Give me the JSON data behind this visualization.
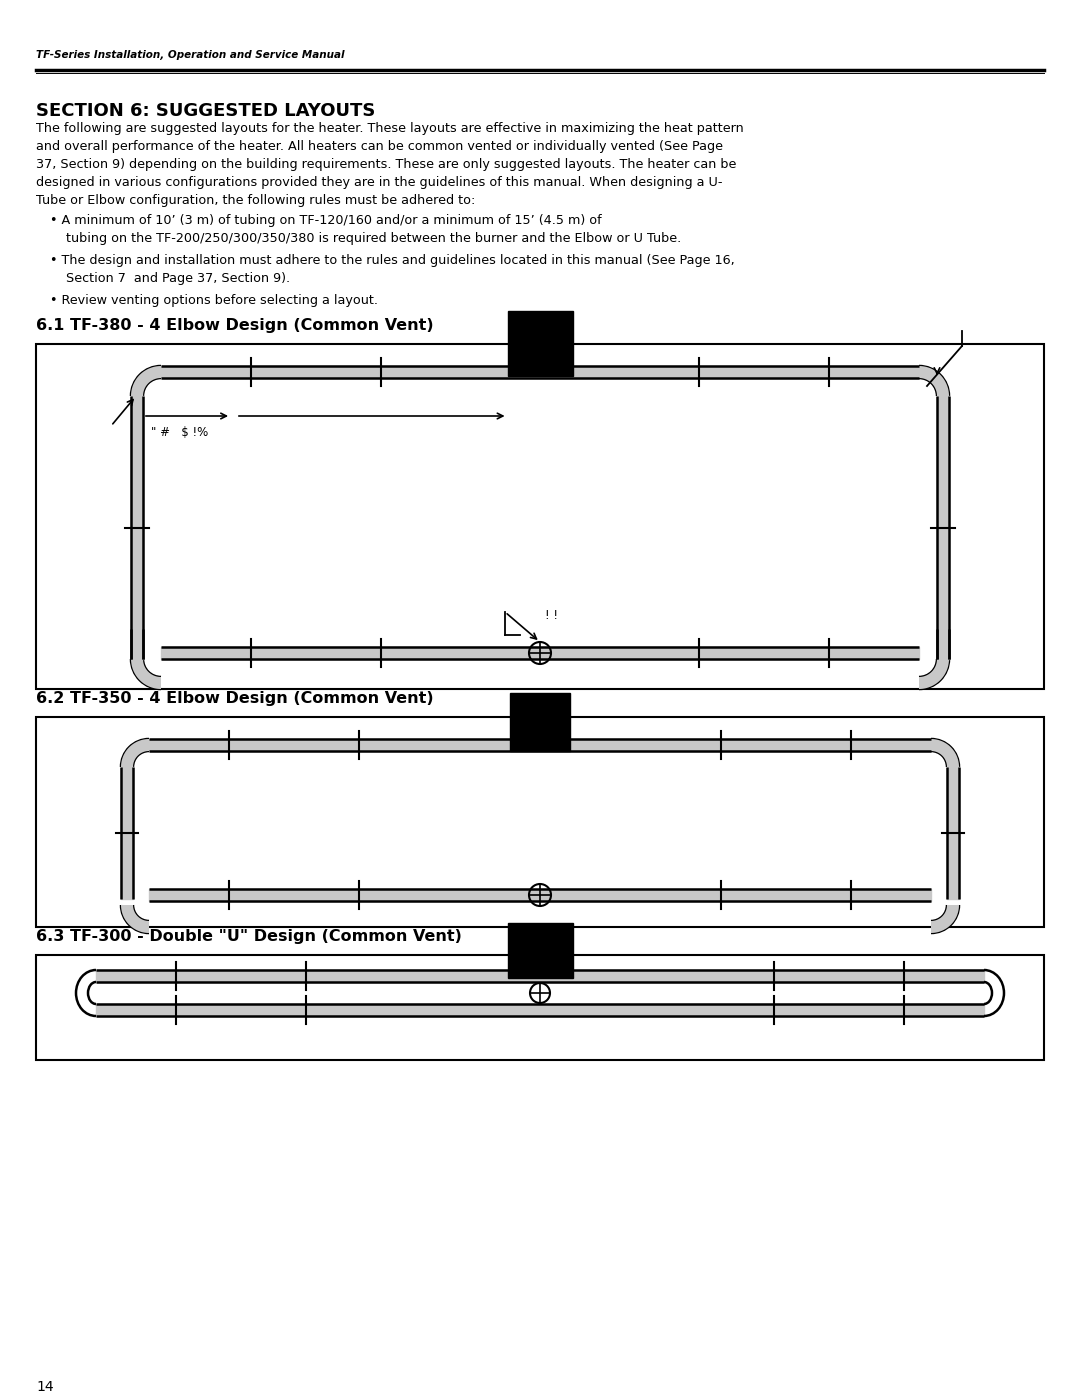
{
  "page_title": "TF-Series Installation, Operation and Service Manual",
  "section_title": "SECTION 6: SUGGESTED LAYOUTS",
  "body_lines": [
    "The following are suggested layouts for the heater. These layouts are effective in maximizing the heat pattern",
    "and overall performance of the heater. All heaters can be common vented or individually vented (See Page",
    "37, Section 9) depending on the building requirements. These are only suggested layouts. The heater can be",
    "designed in various configurations provided they are in the guidelines of this manual. When designing a U-",
    "Tube or Elbow configuration, the following rules must be adhered to:"
  ],
  "bullet1_line1": "• A minimum of 10’ (3 m) of tubing on TF-120/160 and/or a minimum of 15’ (4.5 m) of",
  "bullet1_line2": "    tubing on the TF-200/250/300/350/380 is required between the burner and the Elbow or U Tube.",
  "bullet2_line1": "• The design and installation must adhere to the rules and guidelines located in this manual (See Page 16,",
  "bullet2_line2": "    Section 7  and Page 37, Section 9).",
  "bullet3": "• Review venting options before selecting a layout.",
  "subsection_61": "6.1 TF-380 - 4 Elbow Design (Common Vent)",
  "subsection_62": "6.2 TF-350 - 4 Elbow Design (Common Vent)",
  "subsection_63": "6.3 TF-300 - Double \"U\" Design (Common Vent)",
  "page_number": "14",
  "label_61": "\" #   $ !%",
  "label_exhaust": "! !",
  "bg_color": "#ffffff",
  "tube_gray": "#c8c8c8"
}
